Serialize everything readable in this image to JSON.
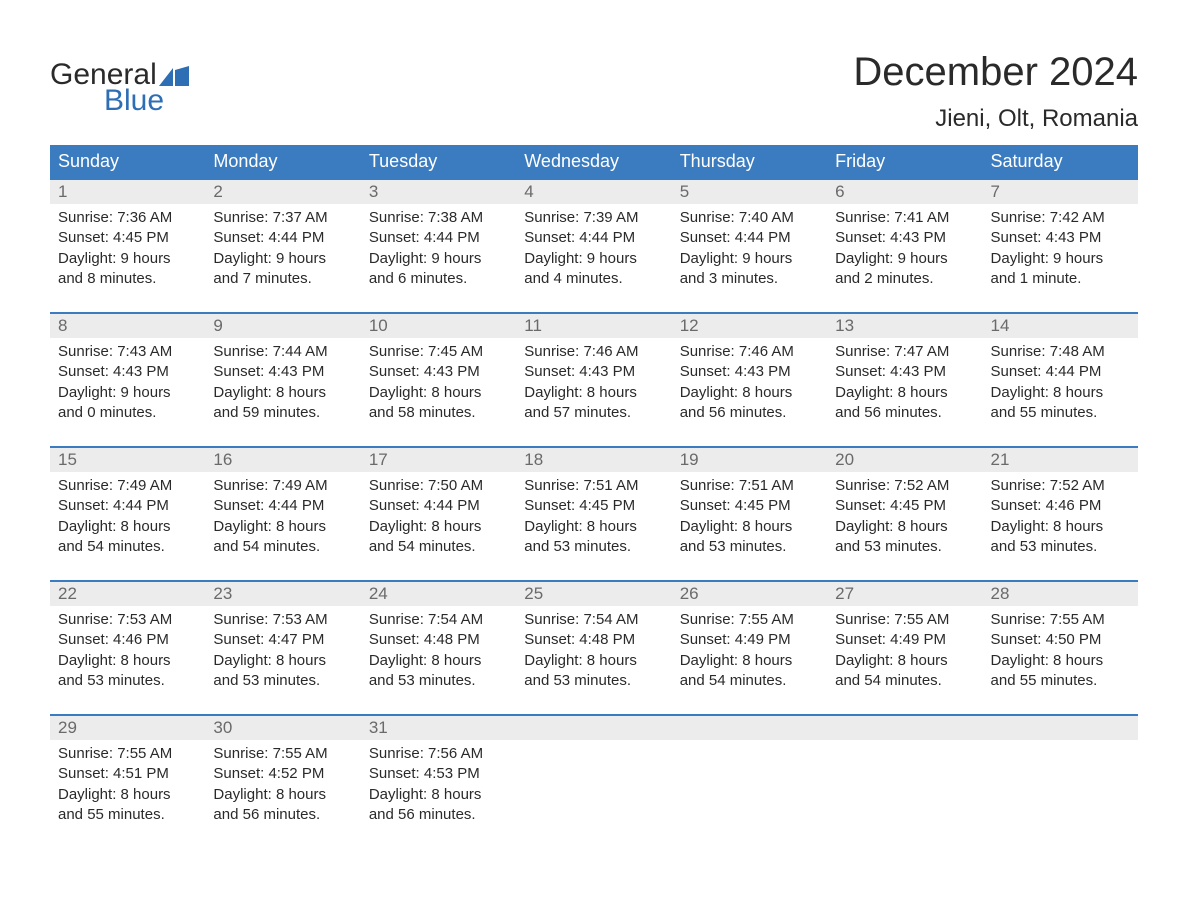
{
  "logo": {
    "text1": "General",
    "text2": "Blue",
    "flag_color": "#2e6eb5"
  },
  "title": "December 2024",
  "location": "Jieni, Olt, Romania",
  "colors": {
    "header_bg": "#3b7bbf",
    "header_text": "#ffffff",
    "daynum_bg": "#ececec",
    "daynum_text": "#6a6a6a",
    "body_text": "#2a2a2a",
    "week_border": "#3b7bbf",
    "logo_blue": "#2e6eb5",
    "background": "#ffffff"
  },
  "typography": {
    "title_fontsize": 40,
    "location_fontsize": 24,
    "dayheader_fontsize": 18,
    "daynum_fontsize": 17,
    "body_fontsize": 15,
    "logo_fontsize": 30
  },
  "layout": {
    "columns": 7,
    "rows": 5,
    "start_day_index": 0
  },
  "day_headers": [
    "Sunday",
    "Monday",
    "Tuesday",
    "Wednesday",
    "Thursday",
    "Friday",
    "Saturday"
  ],
  "days": [
    {
      "n": 1,
      "sunrise": "7:36 AM",
      "sunset": "4:45 PM",
      "dl1": "9 hours",
      "dl2": "and 8 minutes."
    },
    {
      "n": 2,
      "sunrise": "7:37 AM",
      "sunset": "4:44 PM",
      "dl1": "9 hours",
      "dl2": "and 7 minutes."
    },
    {
      "n": 3,
      "sunrise": "7:38 AM",
      "sunset": "4:44 PM",
      "dl1": "9 hours",
      "dl2": "and 6 minutes."
    },
    {
      "n": 4,
      "sunrise": "7:39 AM",
      "sunset": "4:44 PM",
      "dl1": "9 hours",
      "dl2": "and 4 minutes."
    },
    {
      "n": 5,
      "sunrise": "7:40 AM",
      "sunset": "4:44 PM",
      "dl1": "9 hours",
      "dl2": "and 3 minutes."
    },
    {
      "n": 6,
      "sunrise": "7:41 AM",
      "sunset": "4:43 PM",
      "dl1": "9 hours",
      "dl2": "and 2 minutes."
    },
    {
      "n": 7,
      "sunrise": "7:42 AM",
      "sunset": "4:43 PM",
      "dl1": "9 hours",
      "dl2": "and 1 minute."
    },
    {
      "n": 8,
      "sunrise": "7:43 AM",
      "sunset": "4:43 PM",
      "dl1": "9 hours",
      "dl2": "and 0 minutes."
    },
    {
      "n": 9,
      "sunrise": "7:44 AM",
      "sunset": "4:43 PM",
      "dl1": "8 hours",
      "dl2": "and 59 minutes."
    },
    {
      "n": 10,
      "sunrise": "7:45 AM",
      "sunset": "4:43 PM",
      "dl1": "8 hours",
      "dl2": "and 58 minutes."
    },
    {
      "n": 11,
      "sunrise": "7:46 AM",
      "sunset": "4:43 PM",
      "dl1": "8 hours",
      "dl2": "and 57 minutes."
    },
    {
      "n": 12,
      "sunrise": "7:46 AM",
      "sunset": "4:43 PM",
      "dl1": "8 hours",
      "dl2": "and 56 minutes."
    },
    {
      "n": 13,
      "sunrise": "7:47 AM",
      "sunset": "4:43 PM",
      "dl1": "8 hours",
      "dl2": "and 56 minutes."
    },
    {
      "n": 14,
      "sunrise": "7:48 AM",
      "sunset": "4:44 PM",
      "dl1": "8 hours",
      "dl2": "and 55 minutes."
    },
    {
      "n": 15,
      "sunrise": "7:49 AM",
      "sunset": "4:44 PM",
      "dl1": "8 hours",
      "dl2": "and 54 minutes."
    },
    {
      "n": 16,
      "sunrise": "7:49 AM",
      "sunset": "4:44 PM",
      "dl1": "8 hours",
      "dl2": "and 54 minutes."
    },
    {
      "n": 17,
      "sunrise": "7:50 AM",
      "sunset": "4:44 PM",
      "dl1": "8 hours",
      "dl2": "and 54 minutes."
    },
    {
      "n": 18,
      "sunrise": "7:51 AM",
      "sunset": "4:45 PM",
      "dl1": "8 hours",
      "dl2": "and 53 minutes."
    },
    {
      "n": 19,
      "sunrise": "7:51 AM",
      "sunset": "4:45 PM",
      "dl1": "8 hours",
      "dl2": "and 53 minutes."
    },
    {
      "n": 20,
      "sunrise": "7:52 AM",
      "sunset": "4:45 PM",
      "dl1": "8 hours",
      "dl2": "and 53 minutes."
    },
    {
      "n": 21,
      "sunrise": "7:52 AM",
      "sunset": "4:46 PM",
      "dl1": "8 hours",
      "dl2": "and 53 minutes."
    },
    {
      "n": 22,
      "sunrise": "7:53 AM",
      "sunset": "4:46 PM",
      "dl1": "8 hours",
      "dl2": "and 53 minutes."
    },
    {
      "n": 23,
      "sunrise": "7:53 AM",
      "sunset": "4:47 PM",
      "dl1": "8 hours",
      "dl2": "and 53 minutes."
    },
    {
      "n": 24,
      "sunrise": "7:54 AM",
      "sunset": "4:48 PM",
      "dl1": "8 hours",
      "dl2": "and 53 minutes."
    },
    {
      "n": 25,
      "sunrise": "7:54 AM",
      "sunset": "4:48 PM",
      "dl1": "8 hours",
      "dl2": "and 53 minutes."
    },
    {
      "n": 26,
      "sunrise": "7:55 AM",
      "sunset": "4:49 PM",
      "dl1": "8 hours",
      "dl2": "and 54 minutes."
    },
    {
      "n": 27,
      "sunrise": "7:55 AM",
      "sunset": "4:49 PM",
      "dl1": "8 hours",
      "dl2": "and 54 minutes."
    },
    {
      "n": 28,
      "sunrise": "7:55 AM",
      "sunset": "4:50 PM",
      "dl1": "8 hours",
      "dl2": "and 55 minutes."
    },
    {
      "n": 29,
      "sunrise": "7:55 AM",
      "sunset": "4:51 PM",
      "dl1": "8 hours",
      "dl2": "and 55 minutes."
    },
    {
      "n": 30,
      "sunrise": "7:55 AM",
      "sunset": "4:52 PM",
      "dl1": "8 hours",
      "dl2": "and 56 minutes."
    },
    {
      "n": 31,
      "sunrise": "7:56 AM",
      "sunset": "4:53 PM",
      "dl1": "8 hours",
      "dl2": "and 56 minutes."
    }
  ],
  "labels": {
    "sunrise": "Sunrise:",
    "sunset": "Sunset:",
    "daylight": "Daylight:"
  }
}
